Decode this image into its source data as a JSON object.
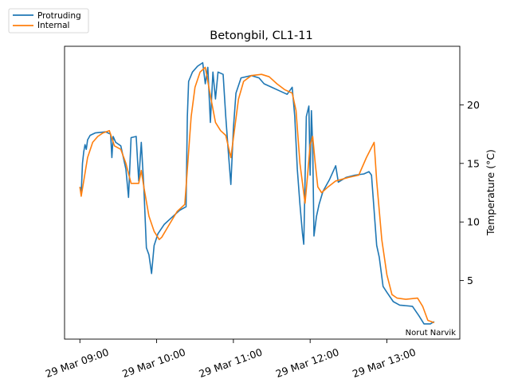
{
  "chart_data": {
    "type": "line",
    "title": "Betongbil, CL1-11",
    "xlabel": "",
    "ylabel": "Temperature (°C)",
    "x_ticks": [
      "29 Mar 09:00",
      "29 Mar 10:00",
      "29 Mar 11:00",
      "29 Mar 12:00",
      "29 Mar 13:00"
    ],
    "y_ticks": [
      5,
      10,
      15,
      20
    ],
    "xlim": [
      "2023-03-29T08:48",
      "2023-03-29T13:57"
    ],
    "ylim": [
      0,
      25
    ],
    "legend": {
      "placement": "outside-top-left"
    },
    "annotation": "Norut Narvik",
    "grid": false,
    "series": [
      {
        "name": "Protruding",
        "color": "#1f77b4",
        "points": [
          [
            "2023-03-29T09:00",
            13.0
          ],
          [
            "2023-03-29T09:01",
            12.4
          ],
          [
            "2023-03-29T09:02",
            15.0
          ],
          [
            "2023-03-29T09:03",
            16.0
          ],
          [
            "2023-03-29T09:04",
            16.6
          ],
          [
            "2023-03-29T09:05",
            16.2
          ],
          [
            "2023-03-29T09:06",
            17.0
          ],
          [
            "2023-03-29T09:08",
            17.4
          ],
          [
            "2023-03-29T09:12",
            17.6
          ],
          [
            "2023-03-29T09:20",
            17.7
          ],
          [
            "2023-03-29T09:24",
            17.5
          ],
          [
            "2023-03-29T09:25",
            15.5
          ],
          [
            "2023-03-29T09:26",
            17.3
          ],
          [
            "2023-03-29T09:28",
            16.8
          ],
          [
            "2023-03-29T09:32",
            16.5
          ],
          [
            "2023-03-29T09:36",
            14.5
          ],
          [
            "2023-03-29T09:38",
            12.1
          ],
          [
            "2023-03-29T09:40",
            17.2
          ],
          [
            "2023-03-29T09:44",
            17.3
          ],
          [
            "2023-03-29T09:46",
            13.5
          ],
          [
            "2023-03-29T09:48",
            16.8
          ],
          [
            "2023-03-29T09:50",
            13.0
          ],
          [
            "2023-03-29T09:52",
            7.8
          ],
          [
            "2023-03-29T09:54",
            7.2
          ],
          [
            "2023-03-29T09:56",
            5.6
          ],
          [
            "2023-03-29T09:58",
            8.0
          ],
          [
            "2023-03-29T10:01",
            9.0
          ],
          [
            "2023-03-29T10:06",
            9.8
          ],
          [
            "2023-03-29T10:12",
            10.4
          ],
          [
            "2023-03-29T10:18",
            11.0
          ],
          [
            "2023-03-29T10:23",
            11.3
          ],
          [
            "2023-03-29T10:24",
            19.0
          ],
          [
            "2023-03-29T10:25",
            22.0
          ],
          [
            "2023-03-29T10:28",
            22.8
          ],
          [
            "2023-03-29T10:32",
            23.3
          ],
          [
            "2023-03-29T10:36",
            23.6
          ],
          [
            "2023-03-29T10:38",
            21.8
          ],
          [
            "2023-03-29T10:40",
            23.2
          ],
          [
            "2023-03-29T10:42",
            18.5
          ],
          [
            "2023-03-29T10:44",
            22.8
          ],
          [
            "2023-03-29T10:46",
            20.5
          ],
          [
            "2023-03-29T10:48",
            22.8
          ],
          [
            "2023-03-29T10:52",
            22.6
          ],
          [
            "2023-03-29T10:54",
            19.0
          ],
          [
            "2023-03-29T10:56",
            16.0
          ],
          [
            "2023-03-29T10:58",
            13.2
          ],
          [
            "2023-03-29T11:00",
            18.0
          ],
          [
            "2023-03-29T11:02",
            21.0
          ],
          [
            "2023-03-29T11:06",
            22.3
          ],
          [
            "2023-03-29T11:14",
            22.5
          ],
          [
            "2023-03-29T11:20",
            22.3
          ],
          [
            "2023-03-29T11:24",
            21.8
          ],
          [
            "2023-03-29T11:30",
            21.5
          ],
          [
            "2023-03-29T11:36",
            21.2
          ],
          [
            "2023-03-29T11:42",
            20.9
          ],
          [
            "2023-03-29T11:46",
            21.5
          ],
          [
            "2023-03-29T11:48",
            19.0
          ],
          [
            "2023-03-29T11:50",
            14.5
          ],
          [
            "2023-03-29T11:52",
            11.5
          ],
          [
            "2023-03-29T11:54",
            9.0
          ],
          [
            "2023-03-29T11:55",
            8.1
          ],
          [
            "2023-03-29T11:57",
            19.0
          ],
          [
            "2023-03-29T11:59",
            19.9
          ],
          [
            "2023-03-29T12:00",
            14.0
          ],
          [
            "2023-03-29T12:01",
            19.5
          ],
          [
            "2023-03-29T12:02",
            16.5
          ],
          [
            "2023-03-29T12:03",
            8.8
          ],
          [
            "2023-03-29T12:05",
            10.5
          ],
          [
            "2023-03-29T12:07",
            11.5
          ],
          [
            "2023-03-29T12:10",
            12.6
          ],
          [
            "2023-03-29T12:15",
            13.6
          ],
          [
            "2023-03-29T12:20",
            14.8
          ],
          [
            "2023-03-29T12:22",
            13.4
          ],
          [
            "2023-03-29T12:28",
            13.8
          ],
          [
            "2023-03-29T12:35",
            14.0
          ],
          [
            "2023-03-29T12:42",
            14.1
          ],
          [
            "2023-03-29T12:46",
            14.3
          ],
          [
            "2023-03-29T12:48",
            14.0
          ],
          [
            "2023-03-29T12:52",
            8.0
          ],
          [
            "2023-03-29T12:54",
            7.0
          ],
          [
            "2023-03-29T12:57",
            4.5
          ],
          [
            "2023-03-29T13:00",
            4.0
          ],
          [
            "2023-03-29T13:05",
            3.2
          ],
          [
            "2023-03-29T13:10",
            2.9
          ],
          [
            "2023-03-29T13:20",
            2.8
          ],
          [
            "2023-03-29T13:25",
            2.0
          ],
          [
            "2023-03-29T13:29",
            1.3
          ],
          [
            "2023-03-29T13:34",
            1.3
          ],
          [
            "2023-03-29T13:37",
            1.5
          ]
        ]
      },
      {
        "name": "Internal",
        "color": "#ff7f0e",
        "points": [
          [
            "2023-03-29T09:00",
            13.0
          ],
          [
            "2023-03-29T09:01",
            12.2
          ],
          [
            "2023-03-29T09:03",
            13.5
          ],
          [
            "2023-03-29T09:06",
            15.5
          ],
          [
            "2023-03-29T09:10",
            16.8
          ],
          [
            "2023-03-29T09:14",
            17.3
          ],
          [
            "2023-03-29T09:18",
            17.6
          ],
          [
            "2023-03-29T09:23",
            17.8
          ],
          [
            "2023-03-29T09:27",
            16.5
          ],
          [
            "2023-03-29T09:32",
            16.2
          ],
          [
            "2023-03-29T09:36",
            15.0
          ],
          [
            "2023-03-29T09:40",
            13.3
          ],
          [
            "2023-03-29T09:46",
            13.3
          ],
          [
            "2023-03-29T09:48",
            14.4
          ],
          [
            "2023-03-29T09:50",
            13.0
          ],
          [
            "2023-03-29T09:54",
            10.5
          ],
          [
            "2023-03-29T09:58",
            9.2
          ],
          [
            "2023-03-29T10:02",
            8.5
          ],
          [
            "2023-03-29T10:04",
            8.7
          ],
          [
            "2023-03-29T10:10",
            9.8
          ],
          [
            "2023-03-29T10:16",
            10.9
          ],
          [
            "2023-03-29T10:22",
            11.5
          ],
          [
            "2023-03-29T10:24",
            14.5
          ],
          [
            "2023-03-29T10:27",
            19.0
          ],
          [
            "2023-03-29T10:30",
            21.5
          ],
          [
            "2023-03-29T10:34",
            22.8
          ],
          [
            "2023-03-29T10:38",
            23.2
          ],
          [
            "2023-03-29T10:42",
            20.8
          ],
          [
            "2023-03-29T10:46",
            18.5
          ],
          [
            "2023-03-29T10:50",
            17.8
          ],
          [
            "2023-03-29T10:54",
            17.4
          ],
          [
            "2023-03-29T10:58",
            15.5
          ],
          [
            "2023-03-29T11:01",
            18.0
          ],
          [
            "2023-03-29T11:04",
            20.5
          ],
          [
            "2023-03-29T11:08",
            22.0
          ],
          [
            "2023-03-29T11:14",
            22.5
          ],
          [
            "2023-03-29T11:22",
            22.6
          ],
          [
            "2023-03-29T11:28",
            22.4
          ],
          [
            "2023-03-29T11:34",
            21.8
          ],
          [
            "2023-03-29T11:40",
            21.3
          ],
          [
            "2023-03-29T11:46",
            21.0
          ],
          [
            "2023-03-29T11:49",
            19.5
          ],
          [
            "2023-03-29T11:52",
            15.0
          ],
          [
            "2023-03-29T11:56",
            11.6
          ],
          [
            "2023-03-29T11:58",
            14.0
          ],
          [
            "2023-03-29T12:00",
            16.6
          ],
          [
            "2023-03-29T12:02",
            17.3
          ],
          [
            "2023-03-29T12:04",
            15.0
          ],
          [
            "2023-03-29T12:06",
            13.0
          ],
          [
            "2023-03-29T12:09",
            12.5
          ],
          [
            "2023-03-29T12:14",
            13.0
          ],
          [
            "2023-03-29T12:20",
            13.5
          ],
          [
            "2023-03-29T12:30",
            13.8
          ],
          [
            "2023-03-29T12:38",
            14.0
          ],
          [
            "2023-03-29T12:44",
            15.5
          ],
          [
            "2023-03-29T12:50",
            16.8
          ],
          [
            "2023-03-29T12:52",
            13.5
          ],
          [
            "2023-03-29T12:56",
            8.5
          ],
          [
            "2023-03-29T13:00",
            5.5
          ],
          [
            "2023-03-29T13:04",
            3.8
          ],
          [
            "2023-03-29T13:08",
            3.5
          ],
          [
            "2023-03-29T13:15",
            3.4
          ],
          [
            "2023-03-29T13:24",
            3.5
          ],
          [
            "2023-03-29T13:28",
            2.8
          ],
          [
            "2023-03-29T13:32",
            1.6
          ],
          [
            "2023-03-29T13:37",
            1.4
          ]
        ]
      }
    ]
  }
}
